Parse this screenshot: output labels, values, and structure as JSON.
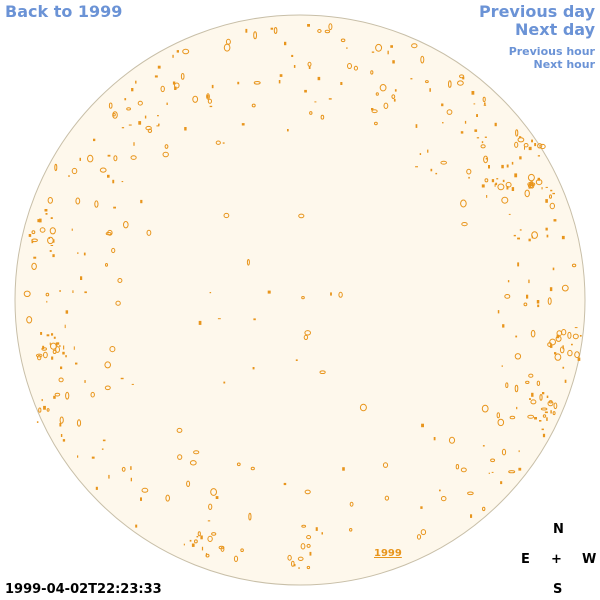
{
  "nav": {
    "back_label": "Back to 1999",
    "previous_day_label": "Previous day",
    "next_day_label": "Next day",
    "previous_hour_label": "Previous hour",
    "next_hour_label": "Next hour"
  },
  "timestamp": "1999-04-02T22:23:33",
  "compass": {
    "north": "N",
    "east": "E",
    "center": "+",
    "west": "W",
    "south": "S"
  },
  "year_marker": "1999",
  "colors": {
    "disk_fill": "#fef8ec",
    "disk_stroke": "#c8bfa8",
    "contour": "#e8951c",
    "nav_link": "#6b93d6"
  }
}
